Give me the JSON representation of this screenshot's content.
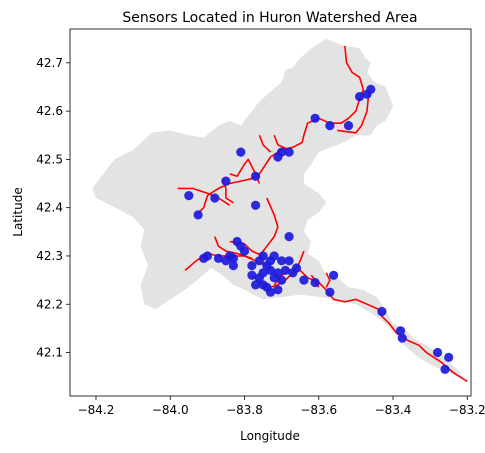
{
  "chart_data": {
    "type": "scatter",
    "title": "Sensors Located in Huron Watershed Area",
    "xlabel": "Longitude",
    "ylabel": "Latitude",
    "xlim": [
      -84.27,
      -83.19
    ],
    "ylim": [
      42.01,
      42.77
    ],
    "xticks": [
      -84.2,
      -84.0,
      -83.8,
      -83.6,
      -83.4,
      -83.2
    ],
    "xtick_labels": [
      "−84.2",
      "−84.0",
      "−83.8",
      "−83.6",
      "−83.4",
      "−83.2"
    ],
    "yticks": [
      42.1,
      42.2,
      42.3,
      42.4,
      42.5,
      42.6,
      42.7
    ],
    "ytick_labels": [
      "42.1",
      "42.2",
      "42.3",
      "42.4",
      "42.5",
      "42.6",
      "42.7"
    ],
    "colors": {
      "watershed": "#e3e3e3",
      "river": "#ff0000",
      "sensor": "#1b1bdc",
      "frame": "#000000"
    },
    "watershed_outline": [
      [
        -83.58,
        42.75
      ],
      [
        -83.55,
        42.74
      ],
      [
        -83.53,
        42.735
      ],
      [
        -83.49,
        42.73
      ],
      [
        -83.475,
        42.71
      ],
      [
        -83.46,
        42.7
      ],
      [
        -83.47,
        42.68
      ],
      [
        -83.45,
        42.66
      ],
      [
        -83.42,
        42.65
      ],
      [
        -83.4,
        42.61
      ],
      [
        -83.42,
        42.58
      ],
      [
        -83.445,
        42.57
      ],
      [
        -83.46,
        42.55
      ],
      [
        -83.5,
        42.55
      ],
      [
        -83.52,
        42.54
      ],
      [
        -83.55,
        42.53
      ],
      [
        -83.6,
        42.515
      ],
      [
        -83.62,
        42.49
      ],
      [
        -83.64,
        42.47
      ],
      [
        -83.64,
        42.45
      ],
      [
        -83.6,
        42.43
      ],
      [
        -83.58,
        42.41
      ],
      [
        -83.6,
        42.39
      ],
      [
        -83.63,
        42.375
      ],
      [
        -83.64,
        42.35
      ],
      [
        -83.62,
        42.33
      ],
      [
        -83.63,
        42.305
      ],
      [
        -83.6,
        42.29
      ],
      [
        -83.58,
        42.26
      ],
      [
        -83.55,
        42.255
      ],
      [
        -83.52,
        42.235
      ],
      [
        -83.48,
        42.23
      ],
      [
        -83.445,
        42.215
      ],
      [
        -83.42,
        42.19
      ],
      [
        -83.4,
        42.16
      ],
      [
        -83.37,
        42.15
      ],
      [
        -83.345,
        42.13
      ],
      [
        -83.3,
        42.11
      ],
      [
        -83.26,
        42.09
      ],
      [
        -83.22,
        42.06
      ],
      [
        -83.21,
        42.045
      ],
      [
        -83.24,
        42.055
      ],
      [
        -83.27,
        42.065
      ],
      [
        -83.3,
        42.075
      ],
      [
        -83.34,
        42.095
      ],
      [
        -83.37,
        42.115
      ],
      [
        -83.395,
        42.14
      ],
      [
        -83.42,
        42.16
      ],
      [
        -83.455,
        42.18
      ],
      [
        -83.5,
        42.2
      ],
      [
        -83.55,
        42.21
      ],
      [
        -83.6,
        42.215
      ],
      [
        -83.65,
        42.22
      ],
      [
        -83.7,
        42.215
      ],
      [
        -83.75,
        42.21
      ],
      [
        -83.8,
        42.23
      ],
      [
        -83.83,
        42.24
      ],
      [
        -83.86,
        42.26
      ],
      [
        -83.89,
        42.275
      ],
      [
        -83.92,
        42.255
      ],
      [
        -83.96,
        42.23
      ],
      [
        -84.0,
        42.21
      ],
      [
        -84.04,
        42.19
      ],
      [
        -84.07,
        42.2
      ],
      [
        -84.08,
        42.24
      ],
      [
        -84.06,
        42.28
      ],
      [
        -84.08,
        42.32
      ],
      [
        -84.07,
        42.355
      ],
      [
        -84.1,
        42.38
      ],
      [
        -84.16,
        42.405
      ],
      [
        -84.2,
        42.42
      ],
      [
        -84.21,
        42.44
      ],
      [
        -84.18,
        42.47
      ],
      [
        -84.15,
        42.5
      ],
      [
        -84.1,
        42.52
      ],
      [
        -84.05,
        42.555
      ],
      [
        -84.0,
        42.56
      ],
      [
        -83.95,
        42.55
      ],
      [
        -83.91,
        42.545
      ],
      [
        -83.87,
        42.57
      ],
      [
        -83.84,
        42.58
      ],
      [
        -83.81,
        42.57
      ],
      [
        -83.79,
        42.59
      ],
      [
        -83.76,
        42.62
      ],
      [
        -83.73,
        42.64
      ],
      [
        -83.7,
        42.66
      ],
      [
        -83.69,
        42.685
      ],
      [
        -83.67,
        42.69
      ],
      [
        -83.65,
        42.71
      ],
      [
        -83.62,
        42.73
      ],
      [
        -83.6,
        42.74
      ]
    ],
    "rivers": [
      [
        [
          -83.53,
          42.735
        ],
        [
          -83.525,
          42.7
        ],
        [
          -83.51,
          42.68
        ],
        [
          -83.49,
          42.67
        ],
        [
          -83.48,
          42.645
        ],
        [
          -83.49,
          42.625
        ],
        [
          -83.5,
          42.6
        ],
        [
          -83.52,
          42.585
        ],
        [
          -83.54,
          42.575
        ],
        [
          -83.57,
          42.575
        ],
        [
          -83.6,
          42.585
        ],
        [
          -83.63,
          42.575
        ],
        [
          -83.64,
          42.55
        ],
        [
          -83.645,
          42.535
        ],
        [
          -83.67,
          42.525
        ],
        [
          -83.7,
          42.52
        ],
        [
          -83.73,
          42.505
        ],
        [
          -83.76,
          42.47
        ],
        [
          -83.78,
          42.46
        ],
        [
          -83.81,
          42.455
        ],
        [
          -83.84,
          42.45
        ],
        [
          -83.87,
          42.44
        ],
        [
          -83.9,
          42.425
        ],
        [
          -83.91,
          42.4
        ],
        [
          -83.93,
          42.385
        ]
      ],
      [
        [
          -83.55,
          42.56
        ],
        [
          -83.5,
          42.555
        ],
        [
          -83.485,
          42.57
        ],
        [
          -83.47,
          42.6
        ],
        [
          -83.465,
          42.64
        ]
      ],
      [
        [
          -83.72,
          42.55
        ],
        [
          -83.71,
          42.53
        ],
        [
          -83.695,
          42.525
        ],
        [
          -83.68,
          42.52
        ]
      ],
      [
        [
          -83.76,
          42.55
        ],
        [
          -83.75,
          42.53
        ],
        [
          -83.73,
          42.515
        ]
      ],
      [
        [
          -83.84,
          42.47
        ],
        [
          -83.82,
          42.465
        ],
        [
          -83.8,
          42.49
        ],
        [
          -83.79,
          42.5
        ],
        [
          -83.77,
          42.47
        ],
        [
          -83.76,
          42.45
        ]
      ],
      [
        [
          -83.98,
          42.44
        ],
        [
          -83.94,
          42.44
        ],
        [
          -83.9,
          42.43
        ],
        [
          -83.87,
          42.42
        ],
        [
          -83.84,
          42.405
        ]
      ],
      [
        [
          -83.86,
          42.46
        ],
        [
          -83.85,
          42.44
        ],
        [
          -83.85,
          42.42
        ],
        [
          -83.83,
          42.41
        ]
      ],
      [
        [
          -83.74,
          42.42
        ],
        [
          -83.72,
          42.385
        ],
        [
          -83.71,
          42.36
        ],
        [
          -83.72,
          42.34
        ],
        [
          -83.74,
          42.32
        ],
        [
          -83.76,
          42.3
        ]
      ],
      [
        [
          -83.88,
          42.34
        ],
        [
          -83.87,
          42.32
        ],
        [
          -83.85,
          42.31
        ],
        [
          -83.82,
          42.305
        ],
        [
          -83.78,
          42.295
        ]
      ],
      [
        [
          -83.96,
          42.27
        ],
        [
          -83.93,
          42.29
        ],
        [
          -83.9,
          42.305
        ],
        [
          -83.87,
          42.3
        ],
        [
          -83.84,
          42.3
        ],
        [
          -83.8,
          42.3
        ],
        [
          -83.77,
          42.29
        ],
        [
          -83.74,
          42.28
        ]
      ],
      [
        [
          -83.84,
          42.33
        ],
        [
          -83.8,
          42.325
        ],
        [
          -83.78,
          42.31
        ],
        [
          -83.75,
          42.3
        ]
      ],
      [
        [
          -83.78,
          42.26
        ],
        [
          -83.76,
          42.245
        ],
        [
          -83.73,
          42.235
        ],
        [
          -83.71,
          42.24
        ],
        [
          -83.69,
          42.25
        ],
        [
          -83.67,
          42.265
        ],
        [
          -83.65,
          42.27
        ],
        [
          -83.63,
          42.255
        ],
        [
          -83.6,
          42.245
        ],
        [
          -83.58,
          42.23
        ],
        [
          -83.56,
          42.21
        ],
        [
          -83.53,
          42.205
        ],
        [
          -83.5,
          42.21
        ],
        [
          -83.47,
          42.2
        ],
        [
          -83.44,
          42.19
        ],
        [
          -83.43,
          42.175
        ],
        [
          -83.41,
          42.16
        ],
        [
          -83.39,
          42.14
        ],
        [
          -83.36,
          42.125
        ],
        [
          -83.33,
          42.115
        ],
        [
          -83.31,
          42.1
        ],
        [
          -83.29,
          42.09
        ],
        [
          -83.27,
          42.08
        ],
        [
          -83.24,
          42.06
        ],
        [
          -83.2,
          42.04
        ]
      ],
      [
        [
          -83.64,
          42.31
        ],
        [
          -83.65,
          42.29
        ],
        [
          -83.66,
          42.275
        ],
        [
          -83.68,
          42.27
        ],
        [
          -83.7,
          42.26
        ],
        [
          -83.72,
          42.24
        ]
      ],
      [
        [
          -83.62,
          42.26
        ],
        [
          -83.61,
          42.25
        ],
        [
          -83.6,
          42.235
        ]
      ],
      [
        [
          -83.58,
          42.265
        ],
        [
          -83.57,
          42.25
        ],
        [
          -83.58,
          42.235
        ]
      ]
    ],
    "sensors": [
      [
        -83.46,
        42.645
      ],
      [
        -83.47,
        42.635
      ],
      [
        -83.49,
        42.63
      ],
      [
        -83.52,
        42.57
      ],
      [
        -83.57,
        42.57
      ],
      [
        -83.61,
        42.585
      ],
      [
        -83.7,
        42.515
      ],
      [
        -83.68,
        42.515
      ],
      [
        -83.71,
        42.505
      ],
      [
        -83.81,
        42.515
      ],
      [
        -83.95,
        42.425
      ],
      [
        -83.925,
        42.385
      ],
      [
        -83.85,
        42.455
      ],
      [
        -83.77,
        42.405
      ],
      [
        -83.77,
        42.465
      ],
      [
        -83.88,
        42.42
      ],
      [
        -83.91,
        42.295
      ],
      [
        -83.9,
        42.3
      ],
      [
        -83.87,
        42.295
      ],
      [
        -83.83,
        42.295
      ],
      [
        -83.82,
        42.33
      ],
      [
        -83.81,
        42.32
      ],
      [
        -83.8,
        42.31
      ],
      [
        -83.83,
        42.28
      ],
      [
        -83.78,
        42.28
      ],
      [
        -83.75,
        42.3
      ],
      [
        -83.73,
        42.29
      ],
      [
        -83.72,
        42.3
      ],
      [
        -83.7,
        42.29
      ],
      [
        -83.68,
        42.29
      ],
      [
        -83.68,
        42.34
      ],
      [
        -83.66,
        42.275
      ],
      [
        -83.67,
        42.265
      ],
      [
        -83.69,
        42.27
      ],
      [
        -83.71,
        42.265
      ],
      [
        -83.73,
        42.27
      ],
      [
        -83.75,
        42.265
      ],
      [
        -83.76,
        42.255
      ],
      [
        -83.78,
        42.26
      ],
      [
        -83.77,
        42.24
      ],
      [
        -83.75,
        42.24
      ],
      [
        -83.74,
        42.235
      ],
      [
        -83.73,
        42.225
      ],
      [
        -83.71,
        42.23
      ],
      [
        -83.7,
        42.25
      ],
      [
        -83.72,
        42.255
      ],
      [
        -83.64,
        42.25
      ],
      [
        -83.61,
        42.245
      ],
      [
        -83.57,
        42.225
      ],
      [
        -83.56,
        42.26
      ],
      [
        -83.43,
        42.185
      ],
      [
        -83.38,
        42.145
      ],
      [
        -83.375,
        42.13
      ],
      [
        -83.28,
        42.1
      ],
      [
        -83.25,
        42.09
      ],
      [
        -83.26,
        42.065
      ],
      [
        -83.74,
        42.28
      ],
      [
        -83.76,
        42.29
      ],
      [
        -83.85,
        42.29
      ],
      [
        -83.84,
        42.3
      ]
    ]
  }
}
